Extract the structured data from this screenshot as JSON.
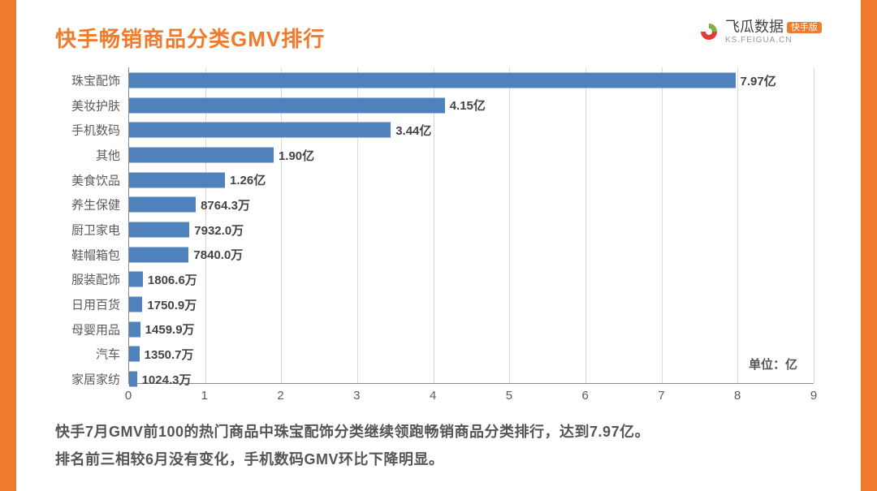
{
  "frame": {
    "border_color": "#ef7b2e",
    "background": "#ffffff"
  },
  "header": {
    "title": "快手畅销商品分类GMV排行",
    "title_color": "#ef7b2e",
    "title_fontsize": 26
  },
  "brand": {
    "name": "飞瓜数据",
    "badge": "快手版",
    "sub": "KS.FEIGUA.CN",
    "logo_green": "#7cb342",
    "logo_red": "#e53935"
  },
  "chart": {
    "type": "bar-horizontal",
    "bar_color": "#4f81bd",
    "grid_color": "#d9d9d9",
    "axis_color": "#888888",
    "label_color": "#5a5a5a",
    "value_color": "#444444",
    "label_fontsize": 15,
    "value_fontsize": 15,
    "xmin": 0,
    "xmax": 9,
    "xtick_step": 1,
    "xticks": [
      "0",
      "1",
      "2",
      "3",
      "4",
      "5",
      "6",
      "7",
      "8",
      "9"
    ],
    "unit_label": "单位：亿",
    "categories": [
      {
        "label": "珠宝配饰",
        "value": 7.97,
        "value_label": "7.97亿"
      },
      {
        "label": "美妆护肤",
        "value": 4.15,
        "value_label": "4.15亿"
      },
      {
        "label": "手机数码",
        "value": 3.44,
        "value_label": "3.44亿"
      },
      {
        "label": "其他",
        "value": 1.9,
        "value_label": "1.90亿"
      },
      {
        "label": "美食饮品",
        "value": 1.26,
        "value_label": "1.26亿"
      },
      {
        "label": "养生保健",
        "value": 0.87643,
        "value_label": "8764.3万"
      },
      {
        "label": "厨卫家电",
        "value": 0.7932,
        "value_label": "7932.0万"
      },
      {
        "label": "鞋帽箱包",
        "value": 0.784,
        "value_label": "7840.0万"
      },
      {
        "label": "服装配饰",
        "value": 0.18066,
        "value_label": "1806.6万"
      },
      {
        "label": "日用百货",
        "value": 0.17509,
        "value_label": "1750.9万"
      },
      {
        "label": "母婴用品",
        "value": 0.14599,
        "value_label": "1459.9万"
      },
      {
        "label": "汽车",
        "value": 0.13507,
        "value_label": "1350.7万"
      },
      {
        "label": "家居家纺",
        "value": 0.10243,
        "value_label": "1024.3万"
      }
    ]
  },
  "footer": {
    "line1": "快手7月GMV前100的热门商品中珠宝配饰分类继续领跑畅销商品分类排行，达到7.97亿。",
    "line2": "排名前三相较6月没有变化，手机数码GMV环比下降明显。"
  }
}
